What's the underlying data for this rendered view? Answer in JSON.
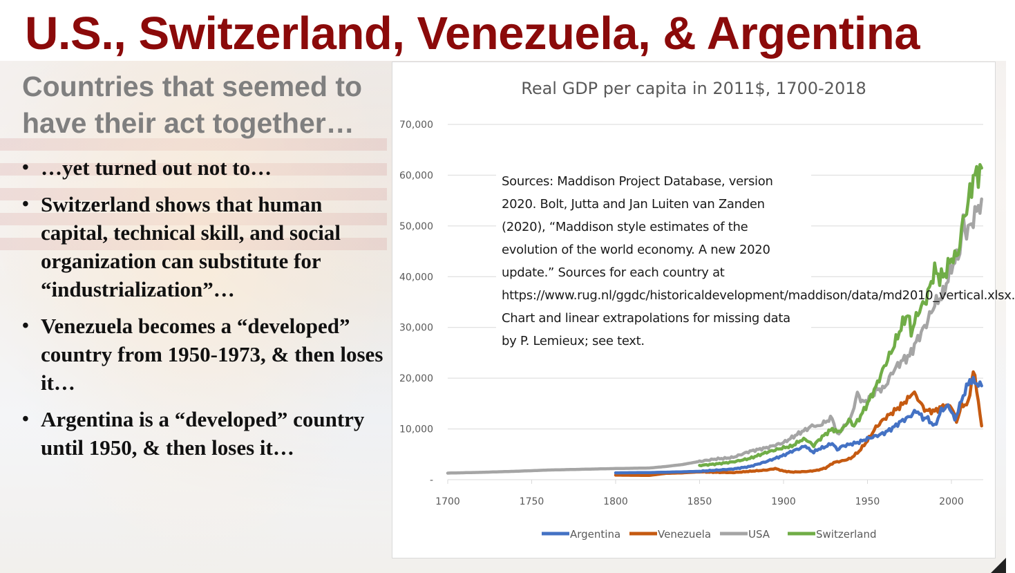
{
  "slide": {
    "title": "U.S., Switzerland, Venezuela, & Argentina",
    "subtitle": "Countries that seemed to have their act together…",
    "bullets": [
      "…yet turned out not to…",
      "Switzerland shows that human capital, technical skill, and social organization can substitute for “industrialization”…",
      "Venezuela becomes a “developed” country from 1950-1973, & then loses it…",
      "Argentina is a “developed” country until 1950, & then loses it…"
    ],
    "bullet_glyph": "•"
  },
  "chart_data": {
    "type": "line",
    "title": "Real GDP per capita in 2011$, 1700-2018",
    "xlabel": "",
    "ylabel": "",
    "xlim": [
      1700,
      2018
    ],
    "ylim": [
      0,
      70000
    ],
    "x_ticks": [
      1700,
      1750,
      1800,
      1850,
      1900,
      1950,
      2000
    ],
    "y_ticks": [
      0,
      10000,
      20000,
      30000,
      40000,
      50000,
      60000,
      70000
    ],
    "y_tick_labels": [
      "-",
      "10,000",
      "20,000",
      "30,000",
      "40,000",
      "50,000",
      "60,000",
      "70,000"
    ],
    "grid": "horizontal",
    "legend_position": "bottom",
    "annotation": "Sources: Maddison Project Database, version 2020. Bolt, Jutta and Jan Luiten van Zanden (2020), “Maddison style estimates of the evolution of the world economy. A new 2020 update.” Sources for each country at https://www.rug.nl/ggdc/historicaldevelopment/maddison/data/md2010_vertical.xlsx. Chart and linear extrapolations for missing data by P. Lemieux; see text.",
    "series": [
      {
        "name": "Argentina",
        "color": "#4472c4",
        "points": [
          [
            1800,
            1350
          ],
          [
            1820,
            1400
          ],
          [
            1840,
            1550
          ],
          [
            1850,
            1650
          ],
          [
            1870,
            2100
          ],
          [
            1880,
            2600
          ],
          [
            1890,
            3600
          ],
          [
            1895,
            4200
          ],
          [
            1900,
            4800
          ],
          [
            1905,
            5600
          ],
          [
            1910,
            6200
          ],
          [
            1913,
            6700
          ],
          [
            1915,
            6000
          ],
          [
            1918,
            5400
          ],
          [
            1920,
            5900
          ],
          [
            1925,
            6500
          ],
          [
            1929,
            7200
          ],
          [
            1932,
            5900
          ],
          [
            1935,
            6600
          ],
          [
            1940,
            7000
          ],
          [
            1945,
            7400
          ],
          [
            1950,
            8100
          ],
          [
            1955,
            8600
          ],
          [
            1960,
            9200
          ],
          [
            1965,
            10200
          ],
          [
            1970,
            11500
          ],
          [
            1975,
            12400
          ],
          [
            1978,
            13300
          ],
          [
            1980,
            13500
          ],
          [
            1983,
            12000
          ],
          [
            1985,
            12300
          ],
          [
            1990,
            10500
          ],
          [
            1994,
            13700
          ],
          [
            1998,
            14500
          ],
          [
            2000,
            13600
          ],
          [
            2002,
            11700
          ],
          [
            2004,
            13700
          ],
          [
            2007,
            16500
          ],
          [
            2011,
            19700
          ],
          [
            2014,
            19200
          ],
          [
            2016,
            18800
          ],
          [
            2018,
            18500
          ]
        ]
      },
      {
        "name": "Venezuela",
        "color": "#c55a11",
        "points": [
          [
            1800,
            900
          ],
          [
            1820,
            850
          ],
          [
            1830,
            1250
          ],
          [
            1840,
            1350
          ],
          [
            1850,
            1550
          ],
          [
            1860,
            1450
          ],
          [
            1870,
            1400
          ],
          [
            1880,
            1650
          ],
          [
            1890,
            1900
          ],
          [
            1895,
            2200
          ],
          [
            1900,
            1700
          ],
          [
            1905,
            1500
          ],
          [
            1910,
            1550
          ],
          [
            1915,
            1650
          ],
          [
            1920,
            1850
          ],
          [
            1925,
            2300
          ],
          [
            1930,
            3400
          ],
          [
            1935,
            3700
          ],
          [
            1940,
            4200
          ],
          [
            1945,
            5600
          ],
          [
            1950,
            7700
          ],
          [
            1955,
            10300
          ],
          [
            1960,
            12000
          ],
          [
            1965,
            13300
          ],
          [
            1970,
            14600
          ],
          [
            1975,
            16200
          ],
          [
            1977,
            17300
          ],
          [
            1980,
            16000
          ],
          [
            1983,
            14300
          ],
          [
            1985,
            13600
          ],
          [
            1990,
            13500
          ],
          [
            1995,
            14500
          ],
          [
            2000,
            14500
          ],
          [
            2003,
            11400
          ],
          [
            2006,
            14600
          ],
          [
            2010,
            15000
          ],
          [
            2013,
            21500
          ],
          [
            2015,
            18000
          ],
          [
            2017,
            13000
          ],
          [
            2018,
            10600
          ]
        ]
      },
      {
        "name": "USA",
        "color": "#a5a5a5",
        "points": [
          [
            1700,
            1300
          ],
          [
            1720,
            1450
          ],
          [
            1740,
            1650
          ],
          [
            1760,
            1900
          ],
          [
            1780,
            2050
          ],
          [
            1800,
            2200
          ],
          [
            1820,
            2300
          ],
          [
            1830,
            2600
          ],
          [
            1840,
            3000
          ],
          [
            1850,
            3600
          ],
          [
            1860,
            4100
          ],
          [
            1865,
            4200
          ],
          [
            1870,
            4400
          ],
          [
            1880,
            5600
          ],
          [
            1890,
            6300
          ],
          [
            1900,
            7300
          ],
          [
            1905,
            8300
          ],
          [
            1910,
            9300
          ],
          [
            1913,
            9800
          ],
          [
            1918,
            10800
          ],
          [
            1920,
            10400
          ],
          [
            1925,
            11400
          ],
          [
            1929,
            12200
          ],
          [
            1932,
            8800
          ],
          [
            1935,
            10000
          ],
          [
            1940,
            12000
          ],
          [
            1944,
            17000
          ],
          [
            1947,
            15300
          ],
          [
            1950,
            15500
          ],
          [
            1955,
            17700
          ],
          [
            1960,
            18000
          ],
          [
            1965,
            21300
          ],
          [
            1970,
            23300
          ],
          [
            1975,
            24400
          ],
          [
            1980,
            27800
          ],
          [
            1985,
            30700
          ],
          [
            1990,
            34600
          ],
          [
            1995,
            36500
          ],
          [
            2000,
            41800
          ],
          [
            2005,
            45000
          ],
          [
            2007,
            51000
          ],
          [
            2009,
            48500
          ],
          [
            2012,
            50500
          ],
          [
            2015,
            53000
          ],
          [
            2018,
            55300
          ]
        ]
      },
      {
        "name": "Switzerland",
        "color": "#70ad47",
        "points": [
          [
            1850,
            2800
          ],
          [
            1860,
            3100
          ],
          [
            1870,
            3500
          ],
          [
            1880,
            4200
          ],
          [
            1890,
            5400
          ],
          [
            1900,
            6300
          ],
          [
            1905,
            6600
          ],
          [
            1910,
            7700
          ],
          [
            1913,
            8000
          ],
          [
            1918,
            6700
          ],
          [
            1920,
            7500
          ],
          [
            1925,
            9000
          ],
          [
            1929,
            10000
          ],
          [
            1932,
            9400
          ],
          [
            1935,
            9900
          ],
          [
            1939,
            11800
          ],
          [
            1942,
            10600
          ],
          [
            1945,
            12000
          ],
          [
            1950,
            15000
          ],
          [
            1955,
            18300
          ],
          [
            1960,
            22300
          ],
          [
            1965,
            25800
          ],
          [
            1970,
            30000
          ],
          [
            1974,
            32800
          ],
          [
            1976,
            29000
          ],
          [
            1980,
            32900
          ],
          [
            1985,
            35500
          ],
          [
            1990,
            41300
          ],
          [
            1993,
            39800
          ],
          [
            1996,
            40400
          ],
          [
            2000,
            43700
          ],
          [
            2003,
            43900
          ],
          [
            2005,
            46300
          ],
          [
            2008,
            53600
          ],
          [
            2009,
            52000
          ],
          [
            2011,
            57000
          ],
          [
            2014,
            60000
          ],
          [
            2016,
            60300
          ],
          [
            2018,
            61400
          ]
        ]
      }
    ]
  }
}
